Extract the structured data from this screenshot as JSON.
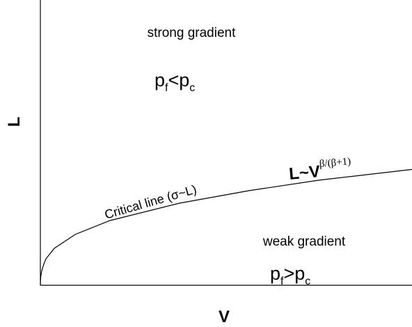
{
  "axes": {
    "y_label": "L",
    "x_label": "V"
  },
  "upper_region": {
    "label": "strong gradient",
    "condition": [
      "p",
      "f",
      "<p",
      "c"
    ]
  },
  "lower_region": {
    "label": "weak gradient",
    "condition": [
      "p",
      "f",
      ">p",
      "c"
    ]
  },
  "critical_line": {
    "label": "Critical line (σ~L)",
    "scaling": [
      "L~V",
      "β/(β+1)"
    ]
  }
}
